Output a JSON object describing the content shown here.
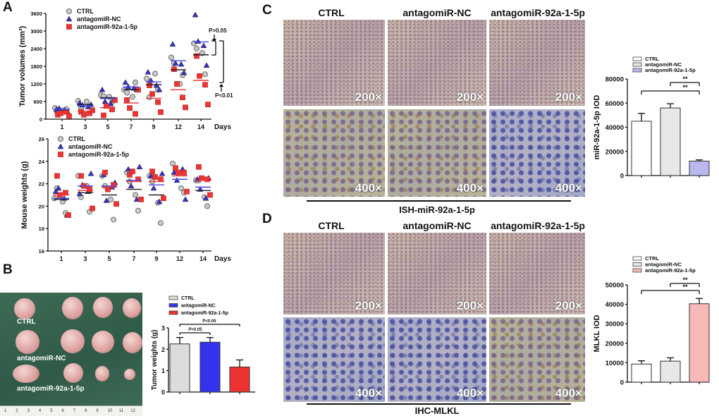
{
  "panels": {
    "a": "A",
    "b": "B",
    "c": "C",
    "d": "D"
  },
  "groups": [
    "CTRL",
    "antagomiR-NC",
    "antagomiR-92a-1-5p"
  ],
  "colors": {
    "ctrl": "#c8c8c8",
    "nc": "#3333cc",
    "mir": "#ee3333",
    "ctrl_mean": "#222222",
    "nc_mean": "#4444ee",
    "mir_mean": "#ee3333"
  },
  "panel_c": {
    "headers": [
      "CTRL",
      "antagomiR-NC",
      "antagomiR-92a-1-5p"
    ],
    "mag_low": "200×",
    "mag_high": "400×",
    "caption": "ISH-miR-92a-1-5p"
  },
  "panel_d": {
    "headers": [
      "CTRL",
      "antagomiR-NC",
      "antagomiR-92a-1-5p"
    ],
    "mag_low": "200×",
    "mag_high": "400×",
    "caption": "IHC-MLKL"
  },
  "photo": {
    "labels": [
      "CTRL",
      "antagomiR-NC",
      "antagomiR-92a-1-5p"
    ],
    "ruler": [
      "1",
      "2",
      "3",
      "4",
      "5",
      "6",
      "7",
      "8",
      "9",
      "10",
      "11",
      "12"
    ]
  },
  "chart_data": [
    {
      "id": "tumor_volume",
      "type": "scatter",
      "ylabel": "Tumor volumes (mm³)",
      "xlabel": "Days",
      "categories": [
        "1",
        "3",
        "5",
        "7",
        "9",
        "12",
        "14"
      ],
      "ylim": [
        0,
        3600
      ],
      "yticks": [
        "0",
        "600",
        "1200",
        "1800",
        "2400",
        "3000",
        "3600"
      ],
      "annotations": [
        "P>0.05",
        "P<0.01"
      ],
      "series": [
        {
          "name": "CTRL",
          "marker": "circle",
          "means": [
            320,
            500,
            730,
            1000,
            1170,
            1680,
            2190
          ],
          "points": [
            [
              380,
              230,
              300,
              340
            ],
            [
              620,
              380,
              600,
              430
            ],
            [
              820,
              780,
              760,
              580
            ],
            [
              1000,
              900,
              760,
              1250
            ],
            [
              1380,
              750,
              1550,
              1000
            ],
            [
              2100,
              1900,
              1200,
              1500
            ],
            [
              2580,
              2400,
              2250,
              1530
            ]
          ]
        },
        {
          "name": "antagomiR-NC",
          "marker": "triangle",
          "means": [
            330,
            450,
            700,
            1100,
            1270,
            1990,
            2630
          ],
          "points": [
            [
              330,
              370,
              300,
              250
            ],
            [
              550,
              480,
              420,
              500
            ],
            [
              1000,
              600,
              520,
              650
            ],
            [
              1250,
              1100,
              1050,
              1000
            ],
            [
              1600,
              1320,
              1150,
              1000
            ],
            [
              2550,
              1900,
              1870,
              1580
            ],
            [
              3550,
              2650,
              2500,
              1830
            ]
          ]
        },
        {
          "name": "antagomiR-92a-1-5p",
          "marker": "square",
          "means": [
            210,
            270,
            390,
            550,
            710,
            1000,
            1320
          ],
          "points": [
            [
              150,
              200,
              250,
              100
            ],
            [
              250,
              150,
              200,
              300
            ],
            [
              130,
              450,
              330,
              650
            ],
            [
              650,
              380,
              180,
              1000
            ],
            [
              1150,
              860,
              580,
              240
            ],
            [
              1700,
              1200,
              740,
              400
            ],
            [
              2150,
              1470,
              1170,
              500
            ]
          ]
        }
      ]
    },
    {
      "id": "mouse_weight",
      "type": "scatter",
      "ylabel": "Mouse weights (g)",
      "xlabel": "Days",
      "categories": [
        "1",
        "3",
        "5",
        "7",
        "9",
        "12",
        "14"
      ],
      "ylim": [
        16,
        26
      ],
      "yticks": [
        "16",
        "18",
        "20",
        "22",
        "24",
        "26"
      ],
      "series": [
        {
          "name": "CTRL",
          "marker": "circle",
          "means": [
            20.6,
            21.2,
            21.0,
            21.5,
            21.0,
            22.4,
            21.4
          ],
          "points": [
            [
              20.7,
              21.6,
              20.4,
              19.4
            ],
            [
              22.7,
              20.8,
              21.8,
              19.5
            ],
            [
              22.7,
              21.8,
              20.6,
              18.8
            ],
            [
              23.0,
              22.2,
              21.0,
              19.6
            ],
            [
              22.7,
              22.2,
              20.3,
              18.5
            ],
            [
              23.8,
              23.1,
              21.6,
              21.2
            ],
            [
              22.3,
              22.3,
              20.8,
              20.0
            ]
          ]
        },
        {
          "name": "antagomiR-NC",
          "marker": "triangle",
          "means": [
            20.7,
            21.8,
            21.8,
            22.3,
            21.9,
            22.4,
            21.7
          ],
          "points": [
            [
              21.3,
              21.6,
              20.7,
              19.2
            ],
            [
              21.1,
              21.9,
              21.3,
              22.9
            ],
            [
              22.8,
              20.5,
              21.7,
              22.1
            ],
            [
              23.3,
              21.8,
              20.6,
              23.5
            ],
            [
              22.7,
              21.6,
              20.4,
              22.9
            ],
            [
              23.0,
              22.3,
              23.3,
              20.6
            ],
            [
              22.4,
              21.5,
              20.7,
              22.5
            ]
          ]
        },
        {
          "name": "antagomiR-92a-1-5p",
          "marker": "square",
          "means": [
            21.0,
            21.4,
            21.7,
            22.2,
            22.2,
            22.7,
            22.3
          ],
          "points": [
            [
              22.7,
              21.0,
              21.2,
              19.2
            ],
            [
              22.7,
              21.8,
              21.5,
              19.8
            ],
            [
              23.0,
              21.5,
              21.9,
              20.2
            ],
            [
              22.8,
              23.1,
              22.4,
              20.6
            ],
            [
              23.1,
              22.6,
              22.4,
              20.7
            ],
            [
              23.4,
              23.0,
              23.0,
              21.3
            ],
            [
              23.5,
              22.5,
              22.4,
              21.0
            ]
          ]
        }
      ]
    },
    {
      "id": "tumor_weight",
      "type": "bar",
      "ylabel": "Tumor weights (g)",
      "categories": [
        "CTRL",
        "antagomiR-NC",
        "antagomiR-92a-1-5p"
      ],
      "values": [
        2.25,
        2.33,
        1.17
      ],
      "errors": [
        0.3,
        0.22,
        0.33
      ],
      "ylim": [
        0,
        3
      ],
      "yticks": [
        "0",
        "1",
        "2",
        "3"
      ],
      "bar_colors": [
        "#dcdcdc",
        "#3333ee",
        "#ee3333"
      ],
      "annotations": [
        "P>0.05",
        "P<0.05"
      ]
    },
    {
      "id": "mir_iod",
      "type": "bar",
      "ylabel": "miR-92a-1-5p IOD",
      "categories": [
        "CTRL",
        "antagomiR-NC",
        "antagomiR-92a-1-5p"
      ],
      "values": [
        45000,
        56000,
        12000
      ],
      "errors": [
        6500,
        3500,
        1000
      ],
      "ylim": [
        0,
        80000
      ],
      "yticks": [
        "0",
        "20000",
        "40000",
        "60000",
        "80000"
      ],
      "bar_colors": [
        "#ffffff",
        "#e8e8e8",
        "#b8b8ee"
      ],
      "annotations": [
        "**",
        "**"
      ]
    },
    {
      "id": "mlkl_iod",
      "type": "bar",
      "ylabel": "MLKL IOD",
      "categories": [
        "CTRL",
        "antagomiR-NC",
        "antagomiR-92a-1-5p"
      ],
      "values": [
        9300,
        10800,
        40300
      ],
      "errors": [
        1700,
        1700,
        2700
      ],
      "ylim": [
        0,
        50000
      ],
      "yticks": [
        "0",
        "10000",
        "20000",
        "30000",
        "40000",
        "50000"
      ],
      "bar_colors": [
        "#ffffff",
        "#e8e8e8",
        "#f8b8b8"
      ],
      "annotations": [
        "**",
        "**"
      ]
    }
  ]
}
